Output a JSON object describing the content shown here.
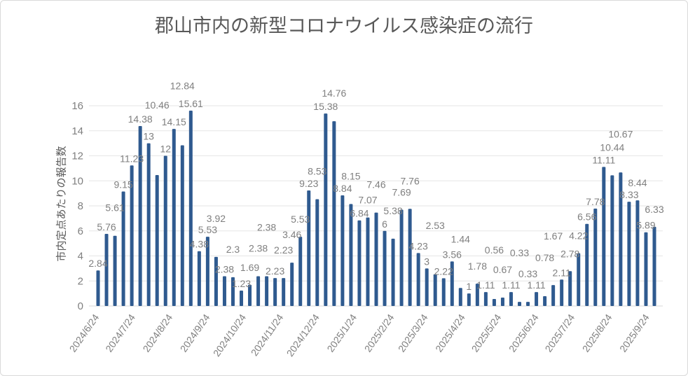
{
  "chart_data": {
    "type": "bar",
    "title": "郡山市内の新型コロナウイルス感染症の流行",
    "ylabel": "市内定点あたりの報告数",
    "xlabel": "",
    "ylim": [
      0,
      16
    ],
    "y_ticks": [
      0,
      2,
      4,
      6,
      8,
      10,
      12,
      14,
      16
    ],
    "grid": true,
    "start_date": "2024/6/24",
    "interval_days": 7,
    "x_tick_labels": [
      "2024/6/24",
      "2024/7/24",
      "2024/8/24",
      "2024/9/24",
      "2024/10/24",
      "2024/11/24",
      "2024/12/24",
      "2025/1/24",
      "2025/2/24",
      "2025/3/24",
      "2025/4/24",
      "2025/5/24",
      "2025/6/24",
      "2025/7/24",
      "2025/8/24",
      "2025/9/24"
    ],
    "values": [
      2.84,
      5.76,
      5.61,
      9.15,
      11.23,
      14.38,
      13,
      10.46,
      12,
      14.15,
      12.84,
      15.61,
      4.38,
      5.53,
      3.92,
      2.38,
      2.3,
      1.23,
      1.69,
      2.38,
      2.38,
      2.23,
      2.23,
      3.46,
      5.53,
      9.23,
      8.53,
      15.38,
      14.76,
      8.84,
      8.15,
      6.84,
      7.07,
      7.46,
      6,
      5.38,
      7.69,
      7.76,
      4.23,
      3,
      2.53,
      2.22,
      3.56,
      1.44,
      1,
      1.78,
      1.11,
      0.56,
      0.67,
      1.11,
      0.33,
      0.33,
      1.11,
      0.78,
      1.67,
      2.11,
      2.78,
      4.22,
      6.56,
      7.78,
      11.11,
      10.44,
      10.67,
      8.33,
      8.44,
      5.89,
      6.33
    ],
    "bar_color": "#2f5a8f"
  }
}
